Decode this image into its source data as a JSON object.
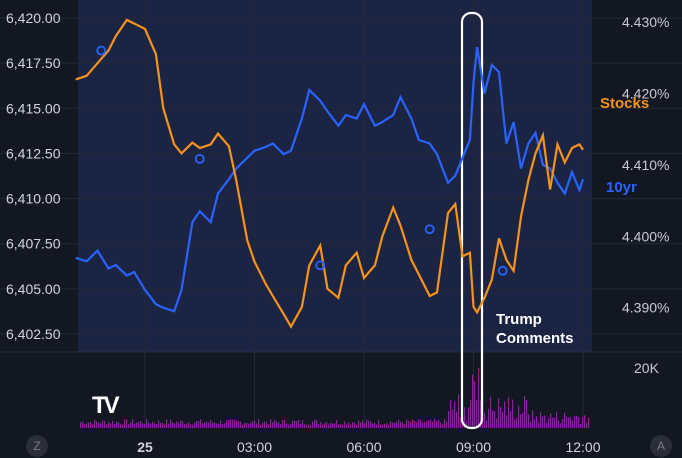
{
  "logo_text": "TV",
  "corner_buttons": {
    "left": "Z",
    "right": "A"
  },
  "chart_data": {
    "type": "line",
    "title": "",
    "x_ticks": [
      "25",
      "03:00",
      "06:00",
      "09:00",
      "12:00"
    ],
    "y_left_ticks": [
      "6,420.00",
      "6,417.50",
      "6,415.00",
      "6,412.50",
      "6,410.00",
      "6,407.50",
      "6,405.00",
      "6,402.50"
    ],
    "y_right_ticks": [
      "4.430%",
      "4.420%",
      "4.410%",
      "4.400%",
      "4.390%"
    ],
    "y_left_range": [
      6401.5,
      6421.0
    ],
    "y_right_range": [
      4.3838,
      4.4331
    ],
    "volume_label": "20K",
    "annotation": {
      "lines": [
        "Trump",
        "Comments"
      ],
      "x_hour": 9.0
    },
    "colors": {
      "stocks": "#f7931a",
      "yield": "#2962ff",
      "volume": "#9c27b0",
      "background": "#131722",
      "shaded": "#1b2543",
      "marker": "#2962ff",
      "highlight_box": "#ffffff"
    },
    "series": [
      {
        "name": "Stocks",
        "axis": "left",
        "x": [
          -1.9,
          -1.6,
          -1.3,
          -1.0,
          -0.8,
          -0.5,
          -0.3,
          0.0,
          0.3,
          0.5,
          0.8,
          1.0,
          1.3,
          1.5,
          1.8,
          2.0,
          2.3,
          2.5,
          2.8,
          3.0,
          3.3,
          3.5,
          3.8,
          4.0,
          4.3,
          4.5,
          4.8,
          5.0,
          5.3,
          5.5,
          5.8,
          6.0,
          6.3,
          6.5,
          6.8,
          7.0,
          7.3,
          7.5,
          7.8,
          8.0,
          8.3,
          8.5,
          8.7,
          8.9,
          9.0,
          9.1,
          9.3,
          9.5,
          9.7,
          9.9,
          10.1,
          10.3,
          10.5,
          10.7,
          10.9,
          11.1,
          11.3,
          11.5,
          11.7,
          11.9,
          12.0
        ],
        "values": [
          6416.6,
          6416.8,
          6417.5,
          6418.2,
          6419.0,
          6419.9,
          6419.7,
          6419.4,
          6418.0,
          6415.0,
          6413.0,
          6412.5,
          6413.1,
          6412.8,
          6413.0,
          6413.6,
          6412.9,
          6411.0,
          6407.7,
          6406.5,
          6405.3,
          6404.6,
          6403.6,
          6402.9,
          6404.0,
          6406.3,
          6407.4,
          6405.0,
          6404.5,
          6406.3,
          6407.0,
          6405.6,
          6406.3,
          6407.9,
          6409.5,
          6408.5,
          6406.6,
          6405.8,
          6404.6,
          6404.8,
          6409.2,
          6409.7,
          6406.8,
          6407.0,
          6404.0,
          6403.7,
          6404.5,
          6405.5,
          6407.8,
          6406.6,
          6406.0,
          6409.0,
          6411.0,
          6412.5,
          6413.5,
          6410.5,
          6413.0,
          6412.0,
          6412.8,
          6413.0,
          6412.7
        ]
      },
      {
        "name": "10yr",
        "axis": "right",
        "x": [
          -1.9,
          -1.6,
          -1.3,
          -1.0,
          -0.8,
          -0.5,
          -0.3,
          0.0,
          0.3,
          0.5,
          0.8,
          1.0,
          1.3,
          1.5,
          1.8,
          2.0,
          2.3,
          2.5,
          2.8,
          3.0,
          3.3,
          3.5,
          3.8,
          4.0,
          4.3,
          4.5,
          4.8,
          5.0,
          5.3,
          5.5,
          5.8,
          6.0,
          6.3,
          6.5,
          6.8,
          7.0,
          7.3,
          7.5,
          7.8,
          8.0,
          8.3,
          8.5,
          8.7,
          8.9,
          9.0,
          9.1,
          9.3,
          9.5,
          9.7,
          9.9,
          10.1,
          10.3,
          10.5,
          10.7,
          10.9,
          11.1,
          11.3,
          11.5,
          11.7,
          11.9,
          12.0
        ],
        "values": [
          4.397,
          4.3965,
          4.398,
          4.3955,
          4.396,
          4.3945,
          4.395,
          4.3925,
          4.3905,
          4.39,
          4.3895,
          4.3925,
          4.402,
          4.4035,
          4.402,
          4.406,
          4.408,
          4.4095,
          4.411,
          4.412,
          4.4125,
          4.413,
          4.4115,
          4.412,
          4.4165,
          4.4205,
          4.419,
          4.4175,
          4.4155,
          4.417,
          4.4165,
          4.4185,
          4.4155,
          4.416,
          4.417,
          4.4195,
          4.4165,
          4.4135,
          4.413,
          4.4115,
          4.4075,
          4.4085,
          4.411,
          4.4135,
          4.4215,
          4.4265,
          4.42,
          4.424,
          4.423,
          4.413,
          4.416,
          4.4095,
          4.413,
          4.4145,
          4.41,
          4.4095,
          4.4075,
          4.406,
          4.409,
          4.4065,
          4.408
        ]
      }
    ],
    "markers_stocks": [
      {
        "x": -1.2,
        "y": 6418.2
      },
      {
        "x": 1.5,
        "y": 6412.2
      },
      {
        "x": 4.8,
        "y": 6406.3
      },
      {
        "x": 7.8,
        "y": 6408.3
      },
      {
        "x": 9.8,
        "y": 6406.0
      }
    ]
  }
}
